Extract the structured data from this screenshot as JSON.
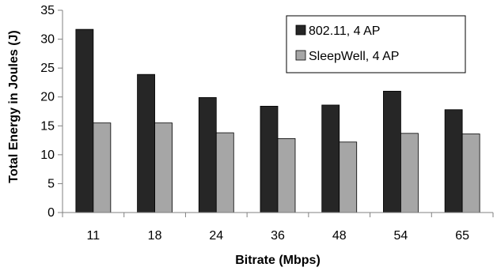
{
  "chart_data": {
    "type": "bar",
    "categories": [
      "11",
      "18",
      "24",
      "36",
      "48",
      "54",
      "65"
    ],
    "series": [
      {
        "name": "802.11, 4 AP",
        "color": "#262626",
        "values": [
          31.7,
          23.9,
          19.9,
          18.4,
          18.6,
          21.0,
          17.8
        ]
      },
      {
        "name": "SleepWell, 4 AP",
        "color": "#a6a6a6",
        "values": [
          15.5,
          15.5,
          13.8,
          12.8,
          12.2,
          13.7,
          13.6
        ]
      }
    ],
    "xlabel": "Bitrate (Mbps)",
    "ylabel": "Total Energy in Joules (J)",
    "ylim": [
      0,
      35
    ],
    "yticks": [
      0,
      5,
      10,
      15,
      20,
      25,
      30,
      35
    ],
    "grid": false,
    "legend": "top-right inside"
  }
}
